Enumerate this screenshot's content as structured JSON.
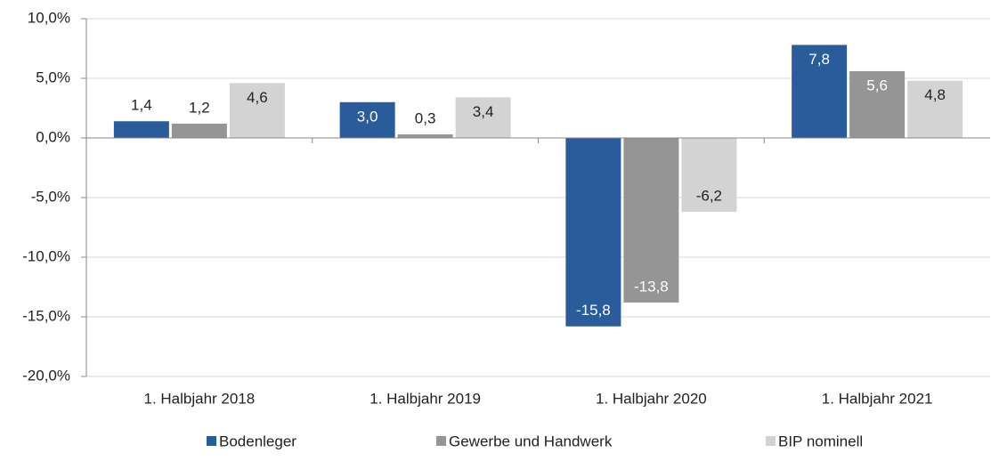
{
  "chart_data": {
    "type": "bar",
    "categories": [
      "1. Halbjahr 2018",
      "1. Halbjahr 2019",
      "1. Halbjahr 2020",
      "1. Halbjahr 2021"
    ],
    "series": [
      {
        "name": "Bodenleger",
        "color": "#2a5b9b",
        "values": [
          1.4,
          3.0,
          -15.8,
          7.8
        ],
        "value_labels": [
          "1,4",
          "3,0",
          "-15,8",
          "7,8"
        ]
      },
      {
        "name": "Gewerbe und Handwerk",
        "color": "#959595",
        "values": [
          1.2,
          0.3,
          -13.8,
          5.6
        ],
        "value_labels": [
          "1,2",
          "0,3",
          "-13,8",
          "5,6"
        ]
      },
      {
        "name": "BIP nominell",
        "color": "#d3d3d3",
        "values": [
          4.6,
          3.4,
          -6.2,
          4.8
        ],
        "value_labels": [
          "4,6",
          "3,4",
          "-6,2",
          "4,8"
        ]
      }
    ],
    "ylim": [
      -20,
      10
    ],
    "yticks": [
      {
        "value": -20,
        "label": "-20,0%"
      },
      {
        "value": -15,
        "label": "-15,0%"
      },
      {
        "value": -10,
        "label": "-10,0%"
      },
      {
        "value": -5,
        "label": "-5,0%"
      },
      {
        "value": 0,
        "label": "0,0%"
      },
      {
        "value": 5,
        "label": "5,0%"
      },
      {
        "value": 10,
        "label": "10,0%"
      }
    ],
    "grid": true,
    "legend": "bottom"
  }
}
